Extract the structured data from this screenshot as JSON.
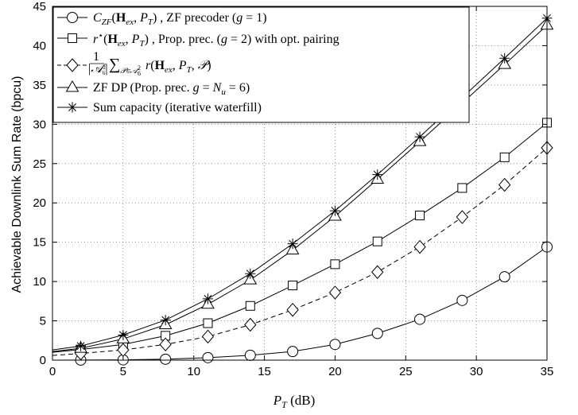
{
  "chart_data": {
    "type": "line",
    "xlabel": "P_T (dB)",
    "ylabel": "Achievable Downlink Sum Rate (bpcu)",
    "xlim": [
      0,
      35
    ],
    "ylim": [
      0,
      45
    ],
    "xticks": [
      0,
      5,
      10,
      15,
      20,
      25,
      30,
      35
    ],
    "yticks": [
      0,
      5,
      10,
      15,
      20,
      25,
      30,
      35,
      40,
      45
    ],
    "grid": "dotted",
    "legend_position": "top-left",
    "marker_x": [
      2,
      5,
      8,
      11,
      14,
      17,
      20,
      23,
      26,
      29,
      32,
      35
    ],
    "series": [
      {
        "name": "C_ZF(H_ex, P_T) , ZF precoder (g = 1)",
        "marker": "circle",
        "dash": "solid",
        "x": [
          0,
          2,
          5,
          8,
          11,
          14,
          17,
          20,
          23,
          26,
          29,
          32,
          35
        ],
        "values": [
          0.0,
          0.01,
          0.04,
          0.12,
          0.32,
          0.62,
          1.1,
          2.0,
          3.4,
          5.2,
          7.6,
          10.6,
          14.4
        ]
      },
      {
        "name": "r*(H_ex, P_T) , Prop. prec. (g = 2) with opt. pairing",
        "marker": "square",
        "dash": "solid",
        "x": [
          0,
          2,
          5,
          8,
          11,
          14,
          17,
          20,
          23,
          26,
          29,
          32,
          35
        ],
        "values": [
          1.0,
          1.35,
          2.0,
          3.1,
          4.7,
          6.9,
          9.5,
          12.2,
          15.1,
          18.4,
          21.9,
          25.8,
          30.2
        ]
      },
      {
        "name": "1/|A_6^2| Σ_{P∈A_6^2} r(H_ex, P_T, P)",
        "marker": "diamond",
        "dash": "dashed",
        "x": [
          0,
          2,
          5,
          8,
          11,
          14,
          17,
          20,
          23,
          26,
          29,
          32,
          35
        ],
        "values": [
          0.6,
          0.85,
          1.3,
          2.0,
          3.0,
          4.5,
          6.4,
          8.6,
          11.2,
          14.4,
          18.2,
          22.3,
          27.0
        ]
      },
      {
        "name": "ZF DP (Prop. prec. g = N_u = 6)",
        "marker": "triangle",
        "dash": "solid",
        "x": [
          0,
          2,
          5,
          8,
          11,
          14,
          17,
          20,
          23,
          26,
          29,
          32,
          35
        ],
        "values": [
          1.1,
          1.5,
          2.7,
          4.5,
          7.1,
          10.2,
          14.0,
          18.3,
          23.0,
          27.8,
          32.7,
          37.6,
          42.6
        ]
      },
      {
        "name": "Sum capacity (iterative waterfill)",
        "marker": "star",
        "dash": "solid",
        "x": [
          0,
          2,
          5,
          8,
          11,
          14,
          17,
          20,
          23,
          26,
          29,
          32,
          35
        ],
        "values": [
          1.3,
          1.8,
          3.2,
          5.1,
          7.8,
          11.0,
          14.8,
          19.0,
          23.6,
          28.4,
          33.4,
          38.4,
          43.5
        ]
      }
    ]
  }
}
